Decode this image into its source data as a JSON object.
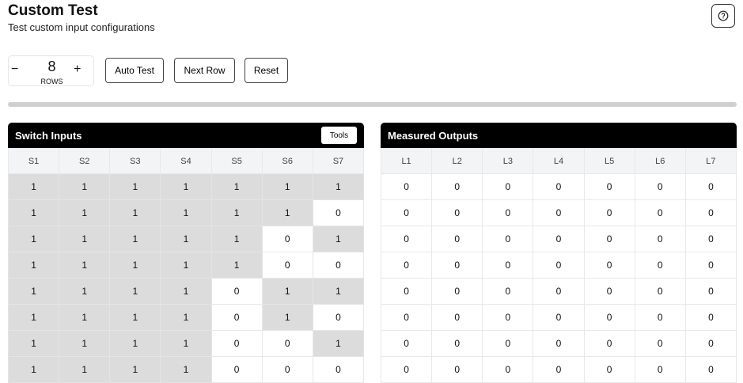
{
  "header": {
    "title": "Custom Test",
    "subtitle": "Test custom input configurations",
    "help_icon": "circle-question-icon"
  },
  "controls": {
    "rows_value": "8",
    "rows_label": "ROWS",
    "minus": "−",
    "plus": "+",
    "auto_test": "Auto Test",
    "next_row": "Next Row",
    "reset": "Reset"
  },
  "progress": 0,
  "inputs": {
    "title": "Switch Inputs",
    "tools": "Tools",
    "columns": [
      "S1",
      "S2",
      "S3",
      "S4",
      "S5",
      "S6",
      "S7"
    ],
    "rows": [
      [
        "1",
        "1",
        "1",
        "1",
        "1",
        "1",
        "1"
      ],
      [
        "1",
        "1",
        "1",
        "1",
        "1",
        "1",
        "0"
      ],
      [
        "1",
        "1",
        "1",
        "1",
        "1",
        "0",
        "1"
      ],
      [
        "1",
        "1",
        "1",
        "1",
        "1",
        "0",
        "0"
      ],
      [
        "1",
        "1",
        "1",
        "1",
        "0",
        "1",
        "1"
      ],
      [
        "1",
        "1",
        "1",
        "1",
        "0",
        "1",
        "0"
      ],
      [
        "1",
        "1",
        "1",
        "1",
        "0",
        "0",
        "1"
      ],
      [
        "1",
        "1",
        "1",
        "1",
        "0",
        "0",
        "0"
      ]
    ]
  },
  "outputs": {
    "title": "Measured Outputs",
    "columns": [
      "L1",
      "L2",
      "L3",
      "L4",
      "L5",
      "L6",
      "L7"
    ],
    "rows": [
      [
        "0",
        "0",
        "0",
        "0",
        "0",
        "0",
        "0"
      ],
      [
        "0",
        "0",
        "0",
        "0",
        "0",
        "0",
        "0"
      ],
      [
        "0",
        "0",
        "0",
        "0",
        "0",
        "0",
        "0"
      ],
      [
        "0",
        "0",
        "0",
        "0",
        "0",
        "0",
        "0"
      ],
      [
        "0",
        "0",
        "0",
        "0",
        "0",
        "0",
        "0"
      ],
      [
        "0",
        "0",
        "0",
        "0",
        "0",
        "0",
        "0"
      ],
      [
        "0",
        "0",
        "0",
        "0",
        "0",
        "0",
        "0"
      ],
      [
        "0",
        "0",
        "0",
        "0",
        "0",
        "0",
        "0"
      ]
    ]
  }
}
